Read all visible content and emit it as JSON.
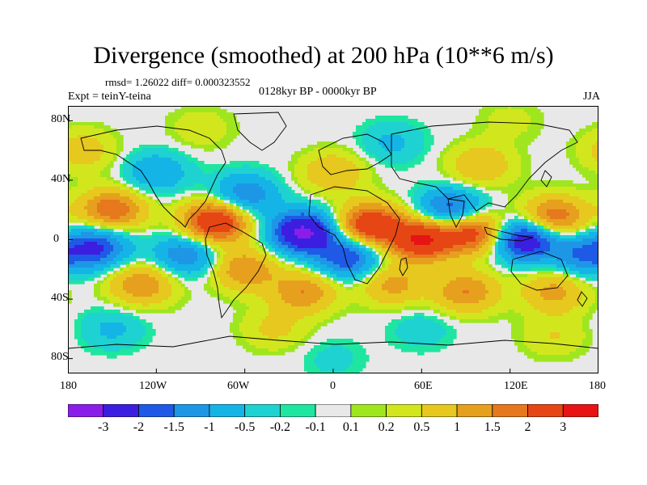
{
  "title": "Divergence (smoothed) at 200 hPa (10**6 m/s)",
  "stats_text": "rmsd= 1.26022 diff= 0.000323552",
  "expt_label": "Expt = teinY-teina",
  "period_label": "0128kyr BP - 0000kyr BP",
  "season_label": "JJA",
  "lat_ticks": [
    "80N",
    "40N",
    "0",
    "40S",
    "80S"
  ],
  "lon_ticks": [
    "180",
    "120W",
    "60W",
    "0",
    "60E",
    "120E",
    "180"
  ],
  "colorbar": {
    "colors": [
      "#8a1ee8",
      "#3c1ee0",
      "#1e5ae6",
      "#1e96e6",
      "#14b4e6",
      "#1ed2d2",
      "#1ee6a0",
      "#e8e8e8",
      "#a0e61e",
      "#d2e61e",
      "#e6c81e",
      "#e6a01e",
      "#e6781e",
      "#e64614",
      "#e61414"
    ],
    "labels": [
      "-3",
      "-2",
      "-1.5",
      "-1",
      "-0.5",
      "-0.2",
      "-0.1",
      "0.1",
      "0.2",
      "0.5",
      "1",
      "1.5",
      "2",
      "3"
    ]
  },
  "field_blobs": [
    {
      "lon": -80,
      "lat": 12,
      "level": 3.0
    },
    {
      "lon": -20,
      "lat": 5,
      "level": -3.2
    },
    {
      "lon": 10,
      "lat": -12,
      "level": -2.0
    },
    {
      "lon": 25,
      "lat": 10,
      "level": 2.8
    },
    {
      "lon": 60,
      "lat": 0,
      "level": 3.0
    },
    {
      "lon": 80,
      "lat": 20,
      "level": -2.0
    },
    {
      "lon": 95,
      "lat": 5,
      "level": 2.5
    },
    {
      "lon": 130,
      "lat": 0,
      "level": -2.8
    },
    {
      "lon": 150,
      "lat": 15,
      "level": 2.0
    },
    {
      "lon": 170,
      "lat": -10,
      "level": -1.5
    },
    {
      "lon": -160,
      "lat": -5,
      "level": -2.0
    },
    {
      "lon": -150,
      "lat": 20,
      "level": 2.0
    },
    {
      "lon": -130,
      "lat": -30,
      "level": 1.5
    },
    {
      "lon": -100,
      "lat": -10,
      "level": -1.5
    },
    {
      "lon": -60,
      "lat": 30,
      "level": -1.5
    },
    {
      "lon": -60,
      "lat": -20,
      "level": 1.5
    },
    {
      "lon": -20,
      "lat": -35,
      "level": 1.5
    },
    {
      "lon": 40,
      "lat": -30,
      "level": 1.2
    },
    {
      "lon": 90,
      "lat": -35,
      "level": 1.5
    },
    {
      "lon": 150,
      "lat": -35,
      "level": 1.2
    },
    {
      "lon": -120,
      "lat": 45,
      "level": -1.0
    },
    {
      "lon": 0,
      "lat": 45,
      "level": 1.0
    },
    {
      "lon": 100,
      "lat": 50,
      "level": 1.0
    },
    {
      "lon": -170,
      "lat": 60,
      "level": 0.8
    },
    {
      "lon": 40,
      "lat": 65,
      "level": -0.6
    },
    {
      "lon": -90,
      "lat": 75,
      "level": 0.4
    },
    {
      "lon": 120,
      "lat": 80,
      "level": 0.3
    },
    {
      "lon": -150,
      "lat": -60,
      "level": -0.6
    },
    {
      "lon": -40,
      "lat": -60,
      "level": 0.6
    },
    {
      "lon": 60,
      "lat": -60,
      "level": -0.4
    },
    {
      "lon": 150,
      "lat": -65,
      "level": 0.5
    },
    {
      "lon": 0,
      "lat": -80,
      "level": -0.3
    }
  ]
}
